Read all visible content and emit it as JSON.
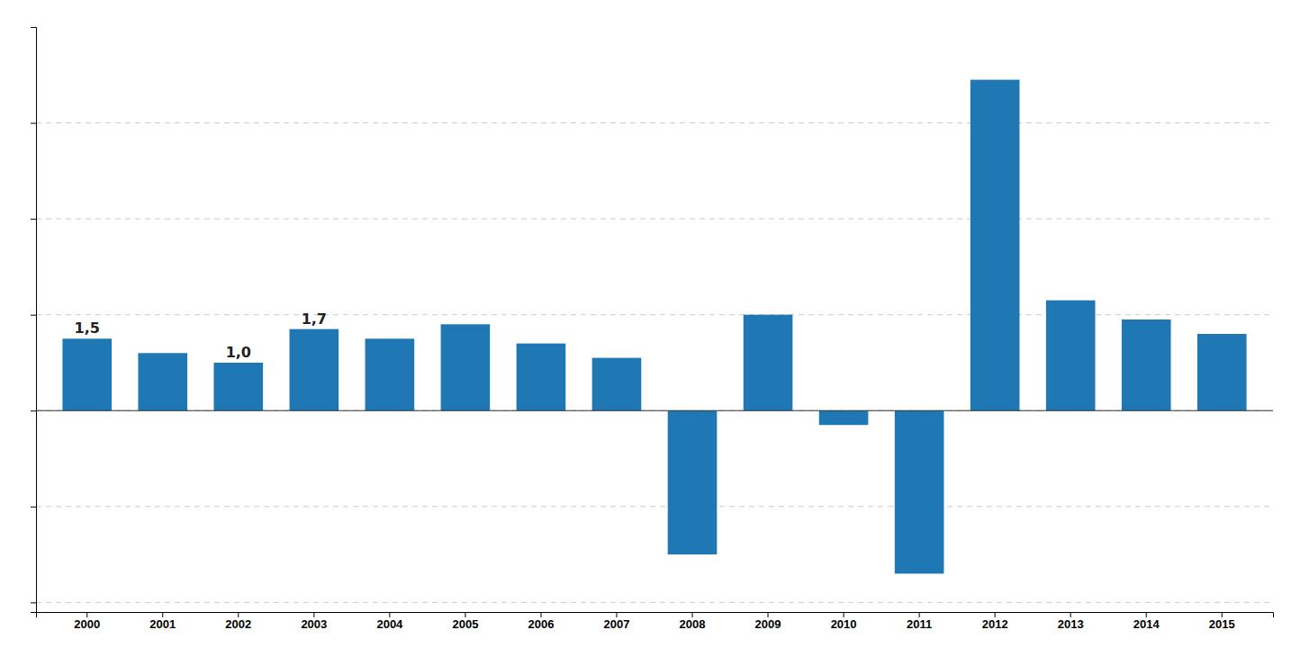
{
  "chart_data": {
    "type": "bar",
    "categories": [
      "2000",
      "2001",
      "2002",
      "2003",
      "2004",
      "2005",
      "2006",
      "2007",
      "2008",
      "2009",
      "2010",
      "2011",
      "2012",
      "2013",
      "2014",
      "2015"
    ],
    "values": [
      1.5,
      1.2,
      1.0,
      1.7,
      1.5,
      1.8,
      1.4,
      1.1,
      -3.0,
      2.0,
      -0.3,
      -3.4,
      6.9,
      2.3,
      1.9,
      1.6
    ],
    "value_labels": [
      "1,5",
      null,
      "1,0",
      "1,7",
      null,
      null,
      null,
      null,
      null,
      null,
      null,
      null,
      null,
      null,
      null,
      null
    ],
    "ylim": [
      -4.2,
      8.0
    ],
    "yticks": [
      -4.0,
      -2.0,
      0.0,
      2.0,
      4.0,
      6.0
    ],
    "grid": true,
    "tick_labels": "x"
  }
}
